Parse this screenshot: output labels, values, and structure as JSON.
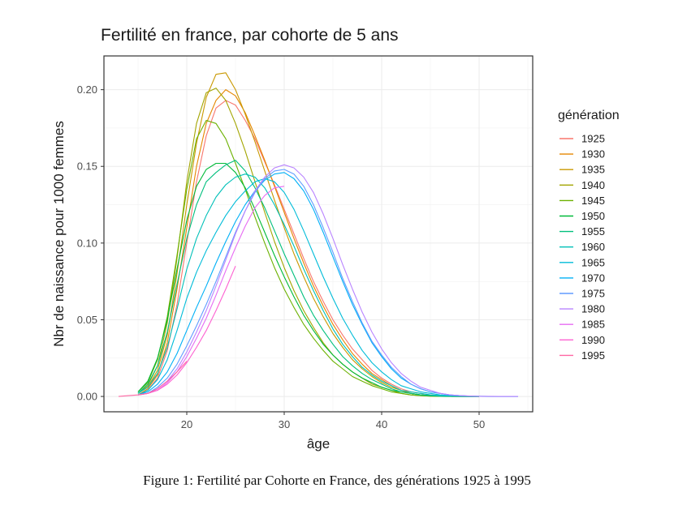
{
  "chart_data": {
    "type": "line",
    "title": "Fertilité en france, par cohorte de 5 ans",
    "xlabel": "âge",
    "ylabel": "Nbr de naissance pour 1000 femmes",
    "xlim": [
      11.5,
      55.5
    ],
    "ylim": [
      -0.01,
      0.222
    ],
    "xticks": [
      20,
      30,
      40,
      50
    ],
    "yticks": [
      0.0,
      0.05,
      0.1,
      0.15,
      0.2
    ],
    "ytick_labels": [
      "0.00",
      "0.05",
      "0.10",
      "0.15",
      "0.20"
    ],
    "grid": true,
    "legend": {
      "title": "génération",
      "position": "right"
    },
    "series": [
      {
        "name": "1925",
        "color": "#F8766D",
        "x": [
          15,
          16,
          17,
          18,
          19,
          20,
          21,
          22,
          23,
          24,
          25,
          26,
          27,
          28,
          29,
          30,
          31,
          32,
          33,
          34,
          35,
          36,
          37,
          38,
          39,
          40,
          41,
          42,
          43,
          44,
          45,
          46,
          47,
          48,
          49,
          50
        ],
        "y": [
          0.001,
          0.004,
          0.012,
          0.03,
          0.06,
          0.1,
          0.14,
          0.17,
          0.188,
          0.193,
          0.19,
          0.18,
          0.168,
          0.153,
          0.138,
          0.122,
          0.106,
          0.09,
          0.075,
          0.062,
          0.05,
          0.04,
          0.031,
          0.024,
          0.017,
          0.012,
          0.008,
          0.005,
          0.003,
          0.002,
          0.001,
          0.0005,
          0.0002,
          0.0001,
          0.0,
          0.0
        ]
      },
      {
        "name": "1930",
        "color": "#E58700",
        "x": [
          15,
          16,
          17,
          18,
          19,
          20,
          21,
          22,
          23,
          24,
          25,
          26,
          27,
          28,
          29,
          30,
          31,
          32,
          33,
          34,
          35,
          36,
          37,
          38,
          39,
          40,
          41,
          42,
          43,
          44,
          45,
          46,
          47,
          48,
          49,
          50
        ],
        "y": [
          0.001,
          0.005,
          0.014,
          0.035,
          0.07,
          0.11,
          0.15,
          0.178,
          0.193,
          0.2,
          0.196,
          0.185,
          0.17,
          0.154,
          0.137,
          0.12,
          0.103,
          0.087,
          0.072,
          0.059,
          0.047,
          0.037,
          0.028,
          0.021,
          0.015,
          0.011,
          0.007,
          0.004,
          0.002,
          0.001,
          0.0005,
          0.0002,
          0.0001,
          0.0,
          0.0,
          0.0
        ]
      },
      {
        "name": "1935",
        "color": "#C99800",
        "x": [
          15,
          16,
          17,
          18,
          19,
          20,
          21,
          22,
          23,
          24,
          25,
          26,
          27,
          28,
          29,
          30,
          31,
          32,
          33,
          34,
          35,
          36,
          37,
          38,
          39,
          40,
          41,
          42,
          43,
          44,
          45,
          46,
          47,
          48,
          49,
          50
        ],
        "y": [
          0.002,
          0.006,
          0.017,
          0.04,
          0.08,
          0.125,
          0.165,
          0.195,
          0.21,
          0.211,
          0.2,
          0.184,
          0.166,
          0.147,
          0.128,
          0.11,
          0.093,
          0.078,
          0.064,
          0.052,
          0.041,
          0.032,
          0.024,
          0.018,
          0.013,
          0.009,
          0.006,
          0.004,
          0.002,
          0.001,
          0.0005,
          0.0002,
          0.0001,
          0.0,
          0.0,
          0.0
        ]
      },
      {
        "name": "1940",
        "color": "#A3A500",
        "x": [
          15,
          16,
          17,
          18,
          19,
          20,
          21,
          22,
          23,
          24,
          25,
          26,
          27,
          28,
          29,
          30,
          31,
          32,
          33,
          34,
          35,
          36,
          37,
          38,
          39,
          40,
          41,
          42,
          43,
          44,
          45,
          46,
          47,
          48,
          49,
          50
        ],
        "y": [
          0.002,
          0.007,
          0.02,
          0.048,
          0.09,
          0.14,
          0.178,
          0.198,
          0.201,
          0.193,
          0.178,
          0.16,
          0.14,
          0.12,
          0.101,
          0.084,
          0.069,
          0.056,
          0.045,
          0.035,
          0.027,
          0.021,
          0.016,
          0.012,
          0.008,
          0.006,
          0.004,
          0.002,
          0.001,
          0.0005,
          0.0002,
          0.0001,
          0.0,
          0.0,
          0.0,
          0.0
        ]
      },
      {
        "name": "1945",
        "color": "#6BB100",
        "x": [
          15,
          16,
          17,
          18,
          19,
          20,
          21,
          22,
          23,
          24,
          25,
          26,
          27,
          28,
          29,
          30,
          31,
          32,
          33,
          34,
          35,
          36,
          37,
          38,
          39,
          40,
          41,
          42,
          43,
          44,
          45,
          46,
          47,
          48,
          49,
          50
        ],
        "y": [
          0.003,
          0.009,
          0.024,
          0.052,
          0.092,
          0.135,
          0.168,
          0.18,
          0.178,
          0.168,
          0.152,
          0.135,
          0.117,
          0.1,
          0.084,
          0.07,
          0.058,
          0.047,
          0.038,
          0.03,
          0.023,
          0.018,
          0.013,
          0.01,
          0.007,
          0.005,
          0.003,
          0.002,
          0.001,
          0.0005,
          0.0002,
          0.0001,
          0.0,
          0.0,
          0.0,
          0.0
        ]
      },
      {
        "name": "1950",
        "color": "#00BA38",
        "x": [
          15,
          16,
          17,
          18,
          19,
          20,
          21,
          22,
          23,
          24,
          25,
          26,
          27,
          28,
          29,
          30,
          31,
          32,
          33,
          34,
          35,
          36,
          37,
          38,
          39,
          40,
          41,
          42,
          43,
          44,
          45,
          46,
          47,
          48,
          49,
          50
        ],
        "y": [
          0.003,
          0.01,
          0.025,
          0.05,
          0.083,
          0.115,
          0.137,
          0.148,
          0.152,
          0.152,
          0.146,
          0.136,
          0.122,
          0.107,
          0.092,
          0.078,
          0.065,
          0.053,
          0.043,
          0.034,
          0.027,
          0.021,
          0.016,
          0.012,
          0.009,
          0.006,
          0.004,
          0.003,
          0.002,
          0.001,
          0.0005,
          0.0002,
          0.0001,
          0.0,
          0.0,
          0.0
        ]
      },
      {
        "name": "1955",
        "color": "#00BF7D",
        "x": [
          15,
          16,
          17,
          18,
          19,
          20,
          21,
          22,
          23,
          24,
          25,
          26,
          27,
          28,
          29,
          30,
          31,
          32,
          33,
          34,
          35,
          36,
          37,
          38,
          39,
          40,
          41,
          42,
          43,
          44,
          45,
          46,
          47,
          48,
          49,
          50
        ],
        "y": [
          0.002,
          0.008,
          0.02,
          0.042,
          0.073,
          0.103,
          0.125,
          0.14,
          0.146,
          0.151,
          0.154,
          0.147,
          0.136,
          0.123,
          0.108,
          0.093,
          0.079,
          0.065,
          0.053,
          0.043,
          0.034,
          0.026,
          0.02,
          0.015,
          0.011,
          0.008,
          0.005,
          0.003,
          0.002,
          0.001,
          0.0005,
          0.0002,
          0.0001,
          0.0,
          0.0,
          0.0
        ]
      },
      {
        "name": "1960",
        "color": "#00C0B8",
        "x": [
          15,
          16,
          17,
          18,
          19,
          20,
          21,
          22,
          23,
          24,
          25,
          26,
          27,
          28,
          29,
          30,
          31,
          32,
          33,
          34,
          35,
          36,
          37,
          38,
          39,
          40,
          41,
          42,
          43,
          44,
          45,
          46,
          47,
          48,
          49,
          50
        ],
        "y": [
          0.002,
          0.006,
          0.015,
          0.032,
          0.057,
          0.083,
          0.103,
          0.118,
          0.13,
          0.138,
          0.143,
          0.145,
          0.143,
          0.136,
          0.125,
          0.112,
          0.098,
          0.083,
          0.069,
          0.056,
          0.044,
          0.034,
          0.026,
          0.019,
          0.014,
          0.01,
          0.007,
          0.004,
          0.003,
          0.002,
          0.001,
          0.0005,
          0.0002,
          0.0001,
          0.0,
          0.0
        ]
      },
      {
        "name": "1965",
        "color": "#00BCD8",
        "x": [
          15,
          16,
          17,
          18,
          19,
          20,
          21,
          22,
          23,
          24,
          25,
          26,
          27,
          28,
          29,
          30,
          31,
          32,
          33,
          34,
          35,
          36,
          37,
          38,
          39,
          40,
          41,
          42,
          43,
          44,
          45,
          46,
          47,
          48,
          49,
          50
        ],
        "y": [
          0.001,
          0.004,
          0.011,
          0.024,
          0.043,
          0.064,
          0.081,
          0.095,
          0.107,
          0.118,
          0.127,
          0.134,
          0.14,
          0.142,
          0.14,
          0.133,
          0.122,
          0.108,
          0.093,
          0.078,
          0.064,
          0.051,
          0.04,
          0.03,
          0.022,
          0.016,
          0.011,
          0.007,
          0.005,
          0.003,
          0.002,
          0.001,
          0.0005,
          0.0002,
          0.0001,
          0.0
        ]
      },
      {
        "name": "1970",
        "color": "#00B0F6",
        "x": [
          15,
          16,
          17,
          18,
          19,
          20,
          21,
          22,
          23,
          24,
          25,
          26,
          27,
          28,
          29,
          30,
          31,
          32,
          33,
          34,
          35,
          36,
          37,
          38,
          39,
          40,
          41,
          42,
          43,
          44,
          45,
          46,
          47,
          48,
          49,
          50,
          51,
          52,
          53,
          54
        ],
        "y": [
          0.001,
          0.003,
          0.008,
          0.016,
          0.028,
          0.043,
          0.058,
          0.072,
          0.087,
          0.101,
          0.114,
          0.125,
          0.134,
          0.141,
          0.145,
          0.146,
          0.142,
          0.134,
          0.122,
          0.107,
          0.091,
          0.075,
          0.06,
          0.047,
          0.035,
          0.026,
          0.018,
          0.012,
          0.008,
          0.005,
          0.003,
          0.002,
          0.001,
          0.0005,
          0.0002,
          0.0001,
          0.0,
          0.0,
          0.0,
          0.0
        ]
      },
      {
        "name": "1975",
        "color": "#619CFF",
        "x": [
          15,
          16,
          17,
          18,
          19,
          20,
          21,
          22,
          23,
          24,
          25,
          26,
          27,
          28,
          29,
          30,
          31,
          32,
          33,
          34,
          35,
          36,
          37,
          38,
          39,
          40,
          41,
          42,
          43,
          44,
          45,
          46,
          47,
          48,
          49,
          50,
          51,
          52,
          53,
          54
        ],
        "y": [
          0.001,
          0.002,
          0.006,
          0.012,
          0.021,
          0.033,
          0.046,
          0.06,
          0.075,
          0.091,
          0.107,
          0.121,
          0.133,
          0.142,
          0.147,
          0.148,
          0.145,
          0.137,
          0.125,
          0.11,
          0.094,
          0.077,
          0.062,
          0.048,
          0.036,
          0.027,
          0.019,
          0.013,
          0.008,
          0.005,
          0.003,
          0.002,
          0.001,
          0.0005,
          0.0002,
          0.0001,
          0.0,
          0.0,
          0.0,
          0.0
        ]
      },
      {
        "name": "1980",
        "color": "#B983FF",
        "x": [
          15,
          16,
          17,
          18,
          19,
          20,
          21,
          22,
          23,
          24,
          25,
          26,
          27,
          28,
          29,
          30,
          31,
          32,
          33,
          34,
          35,
          36,
          37,
          38,
          39,
          40,
          41,
          42,
          43,
          44,
          45,
          46,
          47,
          48,
          49,
          50,
          51,
          52,
          53,
          54
        ],
        "y": [
          0.001,
          0.002,
          0.005,
          0.01,
          0.018,
          0.029,
          0.042,
          0.056,
          0.072,
          0.089,
          0.106,
          0.121,
          0.134,
          0.143,
          0.149,
          0.151,
          0.149,
          0.143,
          0.133,
          0.119,
          0.103,
          0.086,
          0.07,
          0.055,
          0.042,
          0.031,
          0.022,
          0.015,
          0.01,
          0.006,
          0.004,
          0.002,
          0.001,
          0.0005,
          0.0003,
          0.0001,
          0.0001,
          0.0,
          0.0,
          0.0
        ]
      },
      {
        "name": "1985",
        "color": "#E76BF3",
        "x": [
          15,
          16,
          17,
          18,
          19,
          20,
          21,
          22,
          23,
          24,
          25,
          26,
          27,
          28,
          29,
          30
        ],
        "y": [
          0.001,
          0.002,
          0.004,
          0.009,
          0.016,
          0.026,
          0.038,
          0.051,
          0.066,
          0.082,
          0.097,
          0.111,
          0.123,
          0.131,
          0.136,
          0.137
        ]
      },
      {
        "name": "1990",
        "color": "#FD61D1",
        "x": [
          15,
          16,
          17,
          18,
          19,
          20,
          21,
          22,
          23,
          24,
          25
        ],
        "y": [
          0.001,
          0.002,
          0.004,
          0.008,
          0.014,
          0.022,
          0.032,
          0.043,
          0.056,
          0.07,
          0.085
        ]
      },
      {
        "name": "1995",
        "color": "#FF67A4",
        "x": [
          13,
          14,
          15,
          16,
          17,
          18,
          19,
          20
        ],
        "y": [
          0.0,
          0.0005,
          0.001,
          0.002,
          0.005,
          0.01,
          0.016,
          0.023
        ]
      }
    ]
  },
  "caption": "Figure 1: Fertilité par Cohorte en France, des générations 1925 à 1995"
}
